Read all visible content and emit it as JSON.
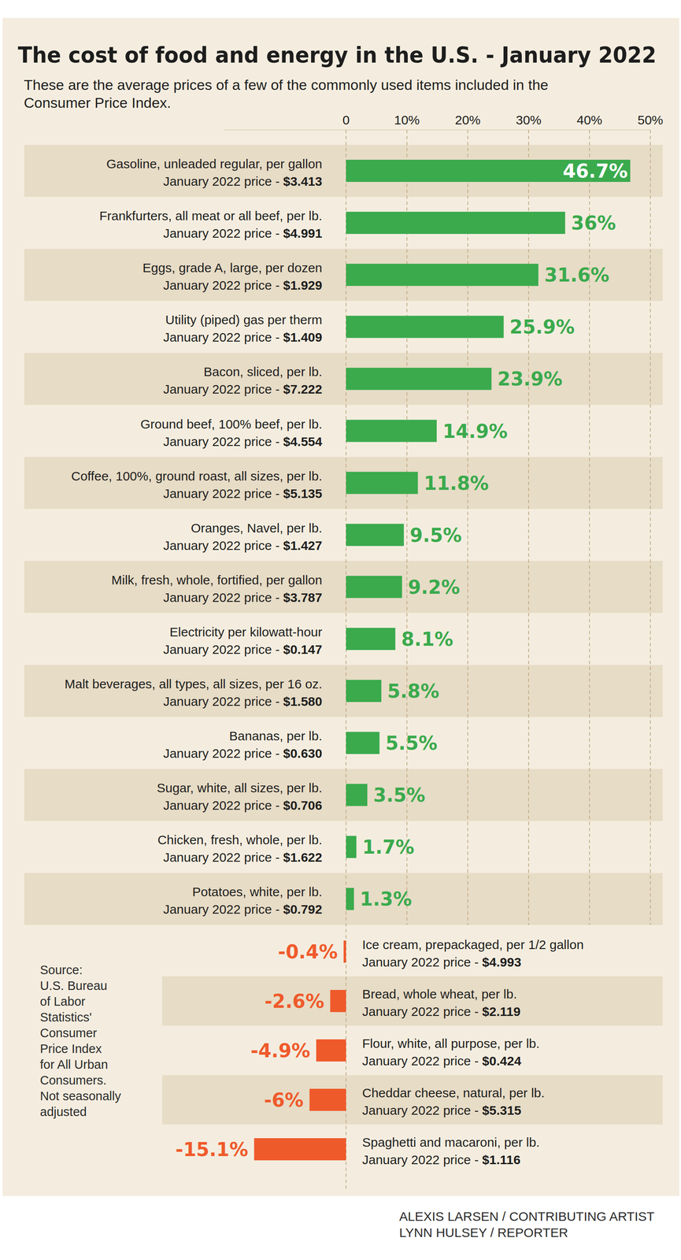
{
  "chart_data": {
    "type": "bar",
    "orientation": "horizontal",
    "title": "The cost of food and energy in the U.S. - January 2022",
    "subtitle": [
      "These are the average prices of a few of the commonly used items included in the",
      "Consumer Price Index."
    ],
    "categories": [
      "Gasoline, unleaded regular, per gallon",
      "Frankfurters, all meat or all beef, per lb.",
      "Eggs, grade A, large, per dozen",
      "Utility (piped) gas per therm",
      "Bacon, sliced, per lb.",
      "Ground beef, 100% beef, per lb.",
      "Coffee, 100%, ground roast, all sizes, per lb.",
      "Oranges, Navel, per lb.",
      "Milk, fresh, whole, fortified, per gallon",
      "Electricity per kilowatt-hour",
      "Malt beverages, all types, all sizes, per 16 oz.",
      "Bananas, per lb.",
      "Sugar, white, all sizes, per lb.",
      "Chicken, fresh, whole, per lb.",
      "Potatoes, white, per lb.",
      "Ice cream, prepackaged, per 1/2 gallon",
      "Bread, whole wheat, per lb.",
      "Flour, white, all purpose, per lb.",
      "Cheddar cheese, natural, per lb.",
      "Spaghetti and macaroni, per lb."
    ],
    "price_labels": [
      "January 2022 price - $3.413",
      "January 2022 price - $4.991",
      "January 2022 price - $1.929",
      "January 2022 price - $1.409",
      "January 2022 price - $7.222",
      "January 2022 price - $4.554",
      "January 2022 price - $5.135",
      "January 2022 price - $1.427",
      "January 2022 price - $3.787",
      "January 2022 price - $0.147",
      "January 2022 price - $1.580",
      "January 2022 price - $0.630",
      "January 2022 price - $0.706",
      "January 2022 price - $1.622",
      "January 2022 price - $0.792",
      "January 2022 price - $4.993",
      "January 2022 price - $2.119",
      "January 2022 price - $0.424",
      "January 2022 price - $5.315",
      "January 2022 price - $1.116"
    ],
    "values": [
      46.7,
      36,
      31.6,
      25.9,
      23.9,
      14.9,
      11.8,
      9.5,
      9.2,
      8.1,
      5.8,
      5.5,
      3.5,
      1.7,
      1.3,
      -0.4,
      -2.6,
      -4.9,
      -6,
      -15.1
    ],
    "value_labels": [
      "46.7%",
      "36%",
      "31.6%",
      "25.9%",
      "23.9%",
      "14.9%",
      "11.8%",
      "9.5%",
      "9.2%",
      "8.1%",
      "5.8%",
      "5.5%",
      "3.5%",
      "1.7%",
      "1.3%",
      "-0.4%",
      "-2.6%",
      "-4.9%",
      "-6%",
      "-15.1%"
    ],
    "colors": [
      "#3aaa4d",
      "#3aaa4d",
      "#3aaa4d",
      "#3aaa4d",
      "#3aaa4d",
      "#3aaa4d",
      "#3aaa4d",
      "#3aaa4d",
      "#3aaa4d",
      "#3aaa4d",
      "#3aaa4d",
      "#3aaa4d",
      "#3aaa4d",
      "#3aaa4d",
      "#3aaa4d",
      "#ef5a2b",
      "#ef5a2b",
      "#ef5a2b",
      "#ef5a2b",
      "#ef5a2b"
    ],
    "xlim": [
      -20,
      50
    ],
    "xticks": [
      {
        "value": 0,
        "label": "0"
      },
      {
        "value": 10,
        "label": "10%"
      },
      {
        "value": 20,
        "label": "20%"
      },
      {
        "value": 30,
        "label": "30%"
      },
      {
        "value": 40,
        "label": "40%"
      },
      {
        "value": 50,
        "label": "50%"
      }
    ],
    "grid": true,
    "data_labels": true,
    "source_lines": [
      "Source:",
      "U.S. Bureau",
      "of Labor",
      "Statistics'",
      "Consumer",
      "Price Index",
      "for All Urban",
      "Consumers.",
      "Not seasonally",
      "adjusted"
    ],
    "credits": [
      "ALEXIS LARSEN / CONTRIBUTING ARTIST",
      "LYNN HULSEY / REPORTER"
    ]
  }
}
